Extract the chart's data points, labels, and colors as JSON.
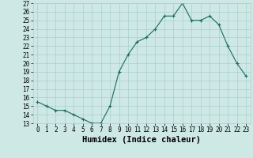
{
  "xlabel": "Humidex (Indice chaleur)",
  "ylabel": "",
  "x": [
    0,
    1,
    2,
    3,
    4,
    5,
    6,
    7,
    8,
    9,
    10,
    11,
    12,
    13,
    14,
    15,
    16,
    17,
    18,
    19,
    20,
    21,
    22,
    23
  ],
  "y": [
    15.5,
    15.0,
    14.5,
    14.5,
    14.0,
    13.5,
    13.0,
    13.0,
    15.0,
    19.0,
    21.0,
    22.5,
    23.0,
    24.0,
    25.5,
    25.5,
    27.0,
    25.0,
    25.0,
    25.5,
    24.5,
    22.0,
    20.0,
    18.5
  ],
  "bg_color": "#cde8e5",
  "grid_color": "#aacfcc",
  "line_color": "#1a6b5a",
  "marker": "+",
  "xlim": [
    -0.5,
    23.5
  ],
  "ylim": [
    13,
    27
  ],
  "yticks": [
    13,
    14,
    15,
    16,
    17,
    18,
    19,
    20,
    21,
    22,
    23,
    24,
    25,
    26,
    27
  ],
  "xticks": [
    0,
    1,
    2,
    3,
    4,
    5,
    6,
    7,
    8,
    9,
    10,
    11,
    12,
    13,
    14,
    15,
    16,
    17,
    18,
    19,
    20,
    21,
    22,
    23
  ],
  "tick_fontsize": 5.5,
  "xlabel_fontsize": 7.5
}
